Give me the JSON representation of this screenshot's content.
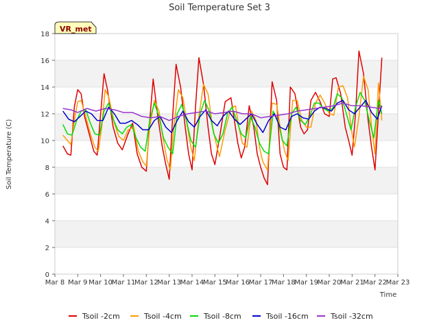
{
  "chart_data": {
    "type": "line",
    "title": "Soil Temperature Set 3",
    "xlabel": "Time",
    "ylabel": "Soil Temperature (C)",
    "badge": "VR_met",
    "ylim": [
      0,
      18
    ],
    "yticks": [
      0,
      2,
      4,
      6,
      8,
      10,
      12,
      14,
      16,
      18
    ],
    "xlim": [
      8,
      23
    ],
    "xticks": [
      {
        "x": 8,
        "label": "Mar 8"
      },
      {
        "x": 9,
        "label": "Mar 9"
      },
      {
        "x": 10,
        "label": "Mar 10"
      },
      {
        "x": 11,
        "label": "Mar 11"
      },
      {
        "x": 12,
        "label": "Mar 12"
      },
      {
        "x": 13,
        "label": "Mar 13"
      },
      {
        "x": 14,
        "label": "Mar 14"
      },
      {
        "x": 15,
        "label": "Mar 15"
      },
      {
        "x": 16,
        "label": "Mar 16"
      },
      {
        "x": 17,
        "label": "Mar 17"
      },
      {
        "x": 18,
        "label": "Mar 18"
      },
      {
        "x": 19,
        "label": "Mar 19"
      },
      {
        "x": 20,
        "label": "Mar 20"
      },
      {
        "x": 21,
        "label": "Mar 21"
      },
      {
        "x": 22,
        "label": "Mar 22"
      },
      {
        "x": 23,
        "label": "Mar 23"
      }
    ],
    "grid": true,
    "banded_background": true,
    "legend_position": "bottom",
    "series": [
      {
        "name": "Tsoil -2cm",
        "color": "#dd0000",
        "x": [
          8.35,
          8.55,
          8.7,
          8.85,
          9.0,
          9.15,
          9.3,
          9.5,
          9.7,
          9.85,
          10.0,
          10.15,
          10.3,
          10.55,
          10.75,
          10.95,
          11.2,
          11.4,
          11.6,
          11.8,
          12.0,
          12.15,
          12.3,
          12.5,
          12.7,
          12.85,
          13.0,
          13.15,
          13.3,
          13.5,
          13.7,
          13.85,
          14.0,
          14.15,
          14.3,
          14.5,
          14.7,
          14.85,
          15.0,
          15.2,
          15.45,
          15.7,
          15.85,
          16.0,
          16.15,
          16.3,
          16.5,
          16.7,
          16.85,
          17.0,
          17.15,
          17.3,
          17.5,
          17.7,
          17.85,
          18.0,
          18.15,
          18.3,
          18.5,
          18.75,
          18.9,
          19.05,
          19.2,
          19.4,
          19.6,
          19.8,
          20.0,
          20.15,
          20.3,
          20.5,
          20.7,
          20.85,
          21.0,
          21.15,
          21.3,
          21.5,
          21.7,
          21.85,
          22.0,
          22.15,
          22.3
        ],
        "y": [
          9.6,
          9.0,
          8.9,
          12.5,
          13.8,
          13.5,
          11.8,
          10.5,
          9.2,
          8.9,
          12.0,
          15.0,
          13.8,
          11.0,
          9.8,
          9.3,
          10.5,
          11.3,
          9.0,
          8.0,
          7.7,
          11.5,
          14.6,
          11.8,
          9.5,
          8.2,
          7.1,
          11.8,
          15.7,
          14.0,
          11.0,
          9.0,
          7.8,
          12.5,
          16.2,
          14.2,
          11.0,
          9.0,
          8.2,
          10.2,
          12.9,
          13.2,
          11.5,
          9.8,
          8.7,
          9.5,
          12.6,
          11.0,
          9.0,
          8.0,
          7.2,
          6.7,
          14.4,
          13.0,
          9.0,
          8.0,
          7.8,
          14.0,
          13.5,
          11.0,
          10.5,
          10.8,
          13.0,
          13.6,
          12.9,
          12.0,
          11.8,
          14.6,
          14.7,
          13.5,
          11.0,
          10.0,
          8.9,
          12.0,
          16.7,
          15.0,
          11.5,
          9.5,
          7.8,
          12.0,
          16.2
        ]
      },
      {
        "name": "Tsoil -4cm",
        "color": "#ff9900",
        "x": [
          8.35,
          8.55,
          8.7,
          8.85,
          9.0,
          9.15,
          9.35,
          9.55,
          9.75,
          9.9,
          10.05,
          10.2,
          10.35,
          10.6,
          10.8,
          11.0,
          11.2,
          11.45,
          11.65,
          11.85,
          12.0,
          12.15,
          12.35,
          12.55,
          12.75,
          12.9,
          13.05,
          13.2,
          13.4,
          13.6,
          13.8,
          13.95,
          14.1,
          14.3,
          14.5,
          14.7,
          14.9,
          15.05,
          15.2,
          15.45,
          15.7,
          15.9,
          16.05,
          16.2,
          16.4,
          16.6,
          16.8,
          16.95,
          17.1,
          17.3,
          17.5,
          17.7,
          17.9,
          18.05,
          18.2,
          18.4,
          18.6,
          18.8,
          19.0,
          19.2,
          19.4,
          19.6,
          19.8,
          20.0,
          20.2,
          20.4,
          20.6,
          20.8,
          20.95,
          21.1,
          21.3,
          21.5,
          21.7,
          21.85,
          22.0,
          22.15,
          22.3
        ],
        "y": [
          10.4,
          10.0,
          9.7,
          11.5,
          12.9,
          13.0,
          11.8,
          10.5,
          9.5,
          9.2,
          11.0,
          13.8,
          13.3,
          11.3,
          10.3,
          10.0,
          10.8,
          11.0,
          9.2,
          8.4,
          8.1,
          11.0,
          13.0,
          12.2,
          10.0,
          8.6,
          7.8,
          11.0,
          13.8,
          13.2,
          11.0,
          9.5,
          8.5,
          11.8,
          14.2,
          13.5,
          11.0,
          9.8,
          8.8,
          10.8,
          12.4,
          12.6,
          11.0,
          9.8,
          9.5,
          12.2,
          11.5,
          9.5,
          8.4,
          7.8,
          12.8,
          12.7,
          10.5,
          9.2,
          8.5,
          13.0,
          13.0,
          11.5,
          11.0,
          11.0,
          12.8,
          13.4,
          12.8,
          12.0,
          11.9,
          14.0,
          14.1,
          13.2,
          11.0,
          9.5,
          11.8,
          14.8,
          13.8,
          11.0,
          9.0,
          14.3,
          11.5
        ]
      },
      {
        "name": "Tsoil -8cm",
        "color": "#00dd00",
        "x": [
          8.35,
          8.55,
          8.75,
          8.95,
          9.15,
          9.35,
          9.55,
          9.75,
          9.95,
          10.15,
          10.35,
          10.55,
          10.75,
          10.95,
          11.15,
          11.35,
          11.55,
          11.75,
          11.95,
          12.15,
          12.35,
          12.55,
          12.75,
          12.95,
          13.15,
          13.35,
          13.55,
          13.75,
          13.95,
          14.15,
          14.35,
          14.55,
          14.75,
          14.95,
          15.15,
          15.35,
          15.55,
          15.75,
          15.95,
          16.15,
          16.35,
          16.55,
          16.75,
          16.95,
          17.15,
          17.35,
          17.55,
          17.75,
          17.95,
          18.15,
          18.35,
          18.55,
          18.75,
          18.95,
          19.15,
          19.35,
          19.55,
          19.75,
          19.95,
          20.15,
          20.35,
          20.55,
          20.75,
          20.95,
          21.15,
          21.35,
          21.55,
          21.75,
          21.95,
          22.15,
          22.3
        ],
        "y": [
          11.2,
          10.5,
          10.4,
          11.5,
          12.2,
          12.3,
          11.3,
          10.5,
          10.4,
          12.2,
          12.8,
          11.6,
          10.8,
          10.5,
          11.0,
          11.2,
          10.2,
          9.5,
          9.2,
          11.5,
          12.8,
          11.8,
          10.2,
          9.5,
          9.0,
          12.0,
          12.7,
          11.5,
          10.0,
          9.5,
          12.0,
          13.0,
          12.2,
          10.5,
          9.8,
          10.5,
          12.0,
          12.5,
          11.5,
          10.5,
          10.2,
          11.8,
          11.0,
          9.8,
          9.2,
          9.0,
          12.2,
          11.5,
          10.0,
          9.6,
          12.0,
          12.5,
          11.5,
          11.2,
          11.8,
          12.8,
          12.8,
          12.4,
          12.2,
          12.4,
          13.5,
          13.2,
          12.0,
          10.8,
          12.5,
          13.6,
          13.0,
          11.5,
          10.2,
          13.0,
          12.0
        ]
      },
      {
        "name": "Tsoil -16cm",
        "color": "#0000cc",
        "x": [
          8.35,
          8.6,
          8.85,
          9.1,
          9.35,
          9.6,
          9.85,
          10.1,
          10.35,
          10.6,
          10.85,
          11.1,
          11.35,
          11.6,
          11.85,
          12.1,
          12.35,
          12.6,
          12.85,
          13.1,
          13.35,
          13.6,
          13.85,
          14.1,
          14.35,
          14.6,
          14.85,
          15.1,
          15.35,
          15.6,
          15.85,
          16.1,
          16.35,
          16.6,
          16.85,
          17.1,
          17.35,
          17.6,
          17.85,
          18.1,
          18.35,
          18.6,
          18.85,
          19.1,
          19.35,
          19.6,
          19.85,
          20.1,
          20.35,
          20.6,
          20.85,
          21.1,
          21.35,
          21.6,
          21.85,
          22.1,
          22.3
        ],
        "y": [
          12.2,
          11.6,
          11.4,
          11.8,
          12.2,
          12.0,
          11.5,
          11.5,
          12.5,
          12.0,
          11.3,
          11.3,
          11.5,
          11.2,
          10.8,
          10.8,
          11.5,
          11.8,
          11.0,
          10.6,
          11.5,
          12.2,
          11.4,
          11.0,
          11.8,
          12.3,
          11.5,
          11.1,
          11.8,
          12.2,
          11.6,
          11.2,
          11.6,
          12.0,
          11.2,
          10.6,
          11.5,
          12.0,
          11.0,
          10.8,
          11.8,
          12.0,
          11.7,
          11.6,
          12.2,
          12.5,
          12.4,
          12.2,
          12.8,
          13.0,
          12.3,
          12.0,
          12.5,
          13.0,
          12.1,
          11.6,
          12.6
        ]
      },
      {
        "name": "Tsoil -32cm",
        "color": "#9933cc",
        "x": [
          8.35,
          8.7,
          9.0,
          9.4,
          9.8,
          10.2,
          10.6,
          11.0,
          11.4,
          11.8,
          12.2,
          12.6,
          13.0,
          13.4,
          13.8,
          14.2,
          14.6,
          15.0,
          15.4,
          15.8,
          16.2,
          16.6,
          17.0,
          17.4,
          17.8,
          18.2,
          18.6,
          19.0,
          19.4,
          19.8,
          20.2,
          20.6,
          21.0,
          21.4,
          21.8,
          22.2,
          22.3
        ],
        "y": [
          12.4,
          12.3,
          12.1,
          12.4,
          12.2,
          12.4,
          12.3,
          12.1,
          12.1,
          11.8,
          11.7,
          11.8,
          11.5,
          11.8,
          12.0,
          12.1,
          12.2,
          12.0,
          12.1,
          12.2,
          12.0,
          12.0,
          11.7,
          11.8,
          11.9,
          12.0,
          12.2,
          12.3,
          12.4,
          12.5,
          12.6,
          12.8,
          12.6,
          12.6,
          12.5,
          12.4,
          12.5
        ]
      }
    ]
  }
}
